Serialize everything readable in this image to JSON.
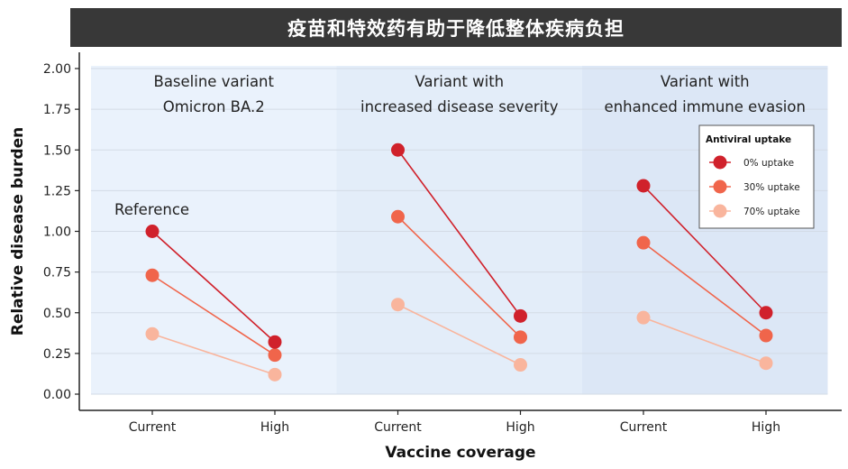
{
  "title": "疫苗和特效药有助于降低整体疾病负担",
  "chart_data": {
    "type": "line",
    "xlabel": "Vaccine coverage",
    "ylabel": "Relative disease burden",
    "ylim": [
      0,
      2
    ],
    "yticks": [
      "0.00",
      "0.25",
      "0.50",
      "0.75",
      "1.00",
      "1.25",
      "1.50",
      "1.75",
      "2.00"
    ],
    "categories": [
      "Current",
      "High"
    ],
    "legend": {
      "title": "Antiviral uptake",
      "placement": "top-right"
    },
    "colors": {
      "0% uptake": "#d0212b",
      "30% uptake": "#f0654b",
      "70% uptake": "#f9b59d"
    },
    "panels": [
      {
        "title_line1": "Baseline variant",
        "title_line2": "Omicron BA.2",
        "annotation": "Reference",
        "background": "#eaf2fc",
        "series": [
          {
            "name": "0% uptake",
            "values": [
              1.0,
              0.32
            ]
          },
          {
            "name": "30% uptake",
            "values": [
              0.73,
              0.24
            ]
          },
          {
            "name": "70% uptake",
            "values": [
              0.37,
              0.12
            ]
          }
        ]
      },
      {
        "title_line1": "Variant with",
        "title_line2": "increased disease severity",
        "annotation": "",
        "background": "#e3edf9",
        "series": [
          {
            "name": "0% uptake",
            "values": [
              1.5,
              0.48
            ]
          },
          {
            "name": "30% uptake",
            "values": [
              1.09,
              0.35
            ]
          },
          {
            "name": "70% uptake",
            "values": [
              0.55,
              0.18
            ]
          }
        ]
      },
      {
        "title_line1": "Variant with",
        "title_line2": "enhanced immune evasion",
        "annotation": "",
        "background": "#dce7f6",
        "series": [
          {
            "name": "0% uptake",
            "values": [
              1.28,
              0.5
            ]
          },
          {
            "name": "30% uptake",
            "values": [
              0.93,
              0.36
            ]
          },
          {
            "name": "70% uptake",
            "values": [
              0.47,
              0.19
            ]
          }
        ]
      }
    ]
  }
}
